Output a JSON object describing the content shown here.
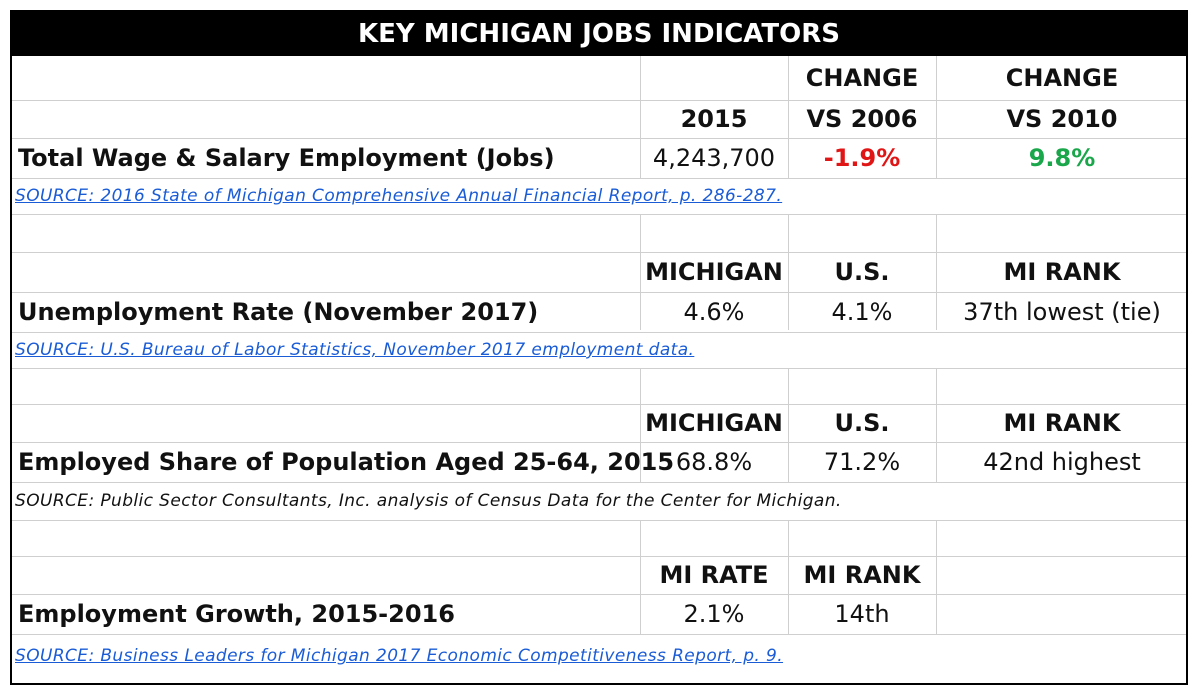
{
  "title": "KEY MICHIGAN JOBS INDICATORS",
  "colors": {
    "negative": "#e01515",
    "positive": "#1aa64a",
    "link": "#1a5cd6",
    "header_bg": "#000000"
  },
  "section1": {
    "header_top": [
      "",
      "CHANGE",
      "CHANGE"
    ],
    "header_bottom": [
      "2015",
      "VS 2006",
      "VS 2010"
    ],
    "label": "Total Wage & Salary Employment (Jobs)",
    "value_2015": "4,243,700",
    "change_2006": "-1.9%",
    "change_2010": "9.8%",
    "source": "SOURCE: 2016 State of Michigan Comprehensive Annual Financial Report, p. 286-287."
  },
  "section2": {
    "headers": [
      "MICHIGAN",
      "U.S.",
      "MI RANK"
    ],
    "label": "Unemployment Rate (November 2017)",
    "values": [
      "4.6%",
      "4.1%",
      "37th lowest (tie)"
    ],
    "source": "SOURCE: U.S. Bureau of Labor Statistics, November 2017 employment data."
  },
  "section3": {
    "headers": [
      "MICHIGAN",
      "U.S.",
      "MI RANK"
    ],
    "label": "Employed Share of Population Aged 25-64, 2015",
    "values": [
      "68.8%",
      "71.2%",
      "42nd highest"
    ],
    "source": "SOURCE: Public Sector Consultants, Inc. analysis of Census Data for the Center for Michigan."
  },
  "section4": {
    "headers": [
      "MI RATE",
      "MI RANK"
    ],
    "label": "Employment Growth, 2015-2016",
    "values": [
      "2.1%",
      "14th"
    ],
    "source": "SOURCE: Business Leaders for Michigan 2017 Economic Competitiveness Report, p. 9."
  }
}
